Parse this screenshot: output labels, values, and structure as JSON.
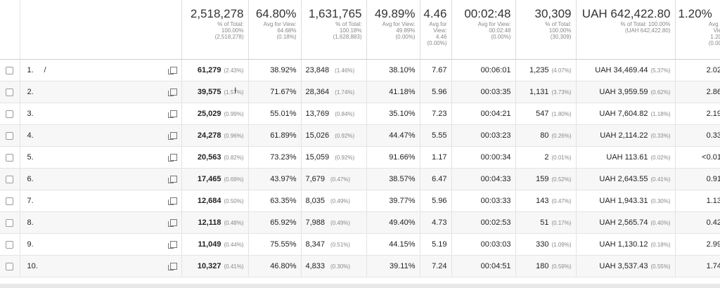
{
  "totals": [
    {
      "big": "2,518,278",
      "sub1": "% of Total:",
      "sub2": "100.00%",
      "sub3": "(2,518,278)"
    },
    {
      "big": "64.80%",
      "sub1": "Avg for View:",
      "sub2": "64.68%",
      "sub3": "(0.18%)"
    },
    {
      "big": "1,631,765",
      "sub1": "% of Total:",
      "sub2": "100.18%",
      "sub3": "(1,628,883)"
    },
    {
      "big": "49.89%",
      "sub1": "Avg for View:",
      "sub2": "49.89%",
      "sub3": "(0.00%)"
    },
    {
      "big": "4.46",
      "sub1": "Avg for",
      "sub2": "View:",
      "sub3": "4.46",
      "sub4": "(0.00%)"
    },
    {
      "big": "00:02:48",
      "sub1": "Avg for View:",
      "sub2": "00:02:48",
      "sub3": "(0.00%)"
    },
    {
      "big": "30,309",
      "sub1": "% of Total:",
      "sub2": "100.00%",
      "sub3": "(30,309)"
    },
    {
      "big": "UAH 642,422.80",
      "sub1": "% of Total: 100.00%",
      "sub2": "(UAH 642,422.80)",
      "sub3": ""
    },
    {
      "big": "1.20%",
      "sub1": "Avg f",
      "sub2": "Vie",
      "sub3": "1.20",
      "sub4": "(0.00"
    }
  ],
  "rows": [
    {
      "idx": "1.",
      "page": "/",
      "pv": "61,279",
      "pv_pct": "(2.43%)",
      "c2": "38.92%",
      "upv": "23,848",
      "upv_pct": "(1.46%)",
      "c4": "38.10%",
      "c5": "7.67",
      "c6": "00:06:01",
      "ent": "1,235",
      "ent_pct": "(4.07%)",
      "val": "UAH 34,469.44",
      "val_pct": "(5.37%)",
      "c9": "2.02"
    },
    {
      "idx": "2.",
      "page": "",
      "pv": "39,575",
      "pv_pct": "(1.57%)",
      "c2": "71.67%",
      "upv": "28,364",
      "upv_pct": "(1.74%)",
      "c4": "41.18%",
      "c5": "5.96",
      "c6": "00:03:35",
      "ent": "1,131",
      "ent_pct": "(3.73%)",
      "val": "UAH 3,959.59",
      "val_pct": "(0.62%)",
      "c9": "2.86"
    },
    {
      "idx": "3.",
      "page": "",
      "pv": "25,029",
      "pv_pct": "(0.99%)",
      "c2": "55.01%",
      "upv": "13,769",
      "upv_pct": "(0.84%)",
      "c4": "35.10%",
      "c5": "7.23",
      "c6": "00:04:21",
      "ent": "547",
      "ent_pct": "(1.80%)",
      "val": "UAH 7,604.82",
      "val_pct": "(1.18%)",
      "c9": "2.19"
    },
    {
      "idx": "4.",
      "page": "",
      "pv": "24,278",
      "pv_pct": "(0.96%)",
      "c2": "61.89%",
      "upv": "15,026",
      "upv_pct": "(0.92%)",
      "c4": "44.47%",
      "c5": "5.55",
      "c6": "00:03:23",
      "ent": "80",
      "ent_pct": "(0.26%)",
      "val": "UAH 2,114.22",
      "val_pct": "(0.33%)",
      "c9": "0.33"
    },
    {
      "idx": "5.",
      "page": "",
      "pv": "20,563",
      "pv_pct": "(0.82%)",
      "c2": "73.23%",
      "upv": "15,059",
      "upv_pct": "(0.92%)",
      "c4": "91.66%",
      "c5": "1.17",
      "c6": "00:00:34",
      "ent": "2",
      "ent_pct": "(0.01%)",
      "val": "UAH 113.61",
      "val_pct": "(0.02%)",
      "c9": "<0.01"
    },
    {
      "idx": "6.",
      "page": "",
      "pv": "17,465",
      "pv_pct": "(0.69%)",
      "c2": "43.97%",
      "upv": "7,679",
      "upv_pct": "(0.47%)",
      "c4": "38.57%",
      "c5": "6.47",
      "c6": "00:04:33",
      "ent": "159",
      "ent_pct": "(0.52%)",
      "val": "UAH 2,643.55",
      "val_pct": "(0.41%)",
      "c9": "0.91"
    },
    {
      "idx": "7.",
      "page": "",
      "pv": "12,684",
      "pv_pct": "(0.50%)",
      "c2": "63.35%",
      "upv": "8,035",
      "upv_pct": "(0.49%)",
      "c4": "39.77%",
      "c5": "5.96",
      "c6": "00:03:33",
      "ent": "143",
      "ent_pct": "(0.47%)",
      "val": "UAH 1,943.31",
      "val_pct": "(0.30%)",
      "c9": "1.13"
    },
    {
      "idx": "8.",
      "page": "",
      "pv": "12,118",
      "pv_pct": "(0.48%)",
      "c2": "65.92%",
      "upv": "7,988",
      "upv_pct": "(0.49%)",
      "c4": "49.40%",
      "c5": "4.73",
      "c6": "00:02:53",
      "ent": "51",
      "ent_pct": "(0.17%)",
      "val": "UAH 2,565.74",
      "val_pct": "(0.40%)",
      "c9": "0.42"
    },
    {
      "idx": "9.",
      "page": "",
      "pv": "11,049",
      "pv_pct": "(0.44%)",
      "c2": "75.55%",
      "upv": "8,347",
      "upv_pct": "(0.51%)",
      "c4": "44.15%",
      "c5": "5.19",
      "c6": "00:03:03",
      "ent": "330",
      "ent_pct": "(1.09%)",
      "val": "UAH 1,130.12",
      "val_pct": "(0.18%)",
      "c9": "2.99"
    },
    {
      "idx": "10.",
      "page": "",
      "pv": "10,327",
      "pv_pct": "(0.41%)",
      "c2": "46.80%",
      "upv": "4,833",
      "upv_pct": "(0.30%)",
      "c4": "39.11%",
      "c5": "7.24",
      "c6": "00:04:51",
      "ent": "180",
      "ent_pct": "(0.59%)",
      "val": "UAH 3,537.43",
      "val_pct": "(0.55%)",
      "c9": "1.74"
    }
  ],
  "icons": {
    "row_action": "open-external-icon",
    "select": "checkbox"
  }
}
